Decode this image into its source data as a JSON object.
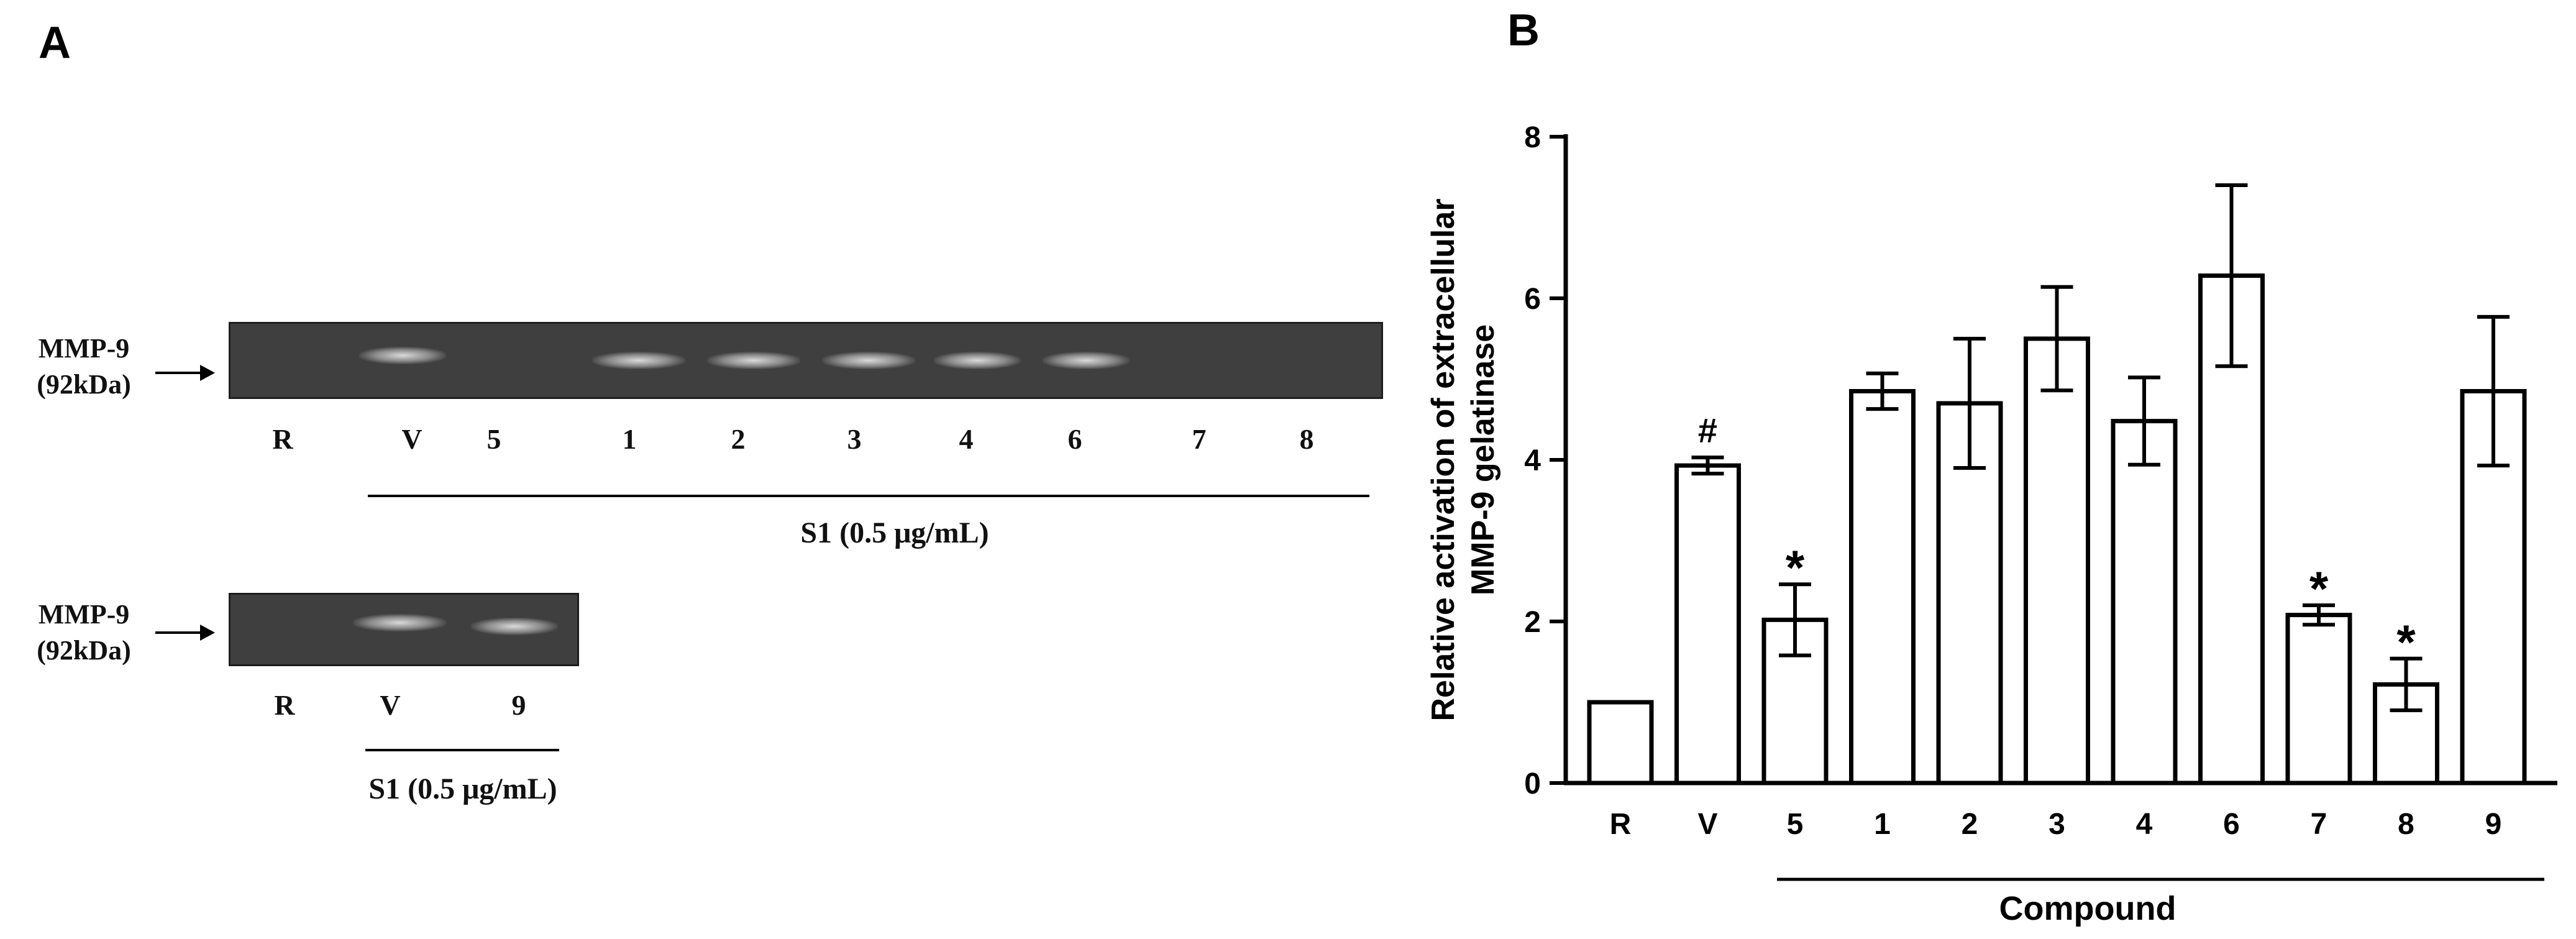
{
  "panel_a": {
    "letter": "A",
    "gel_top": {
      "marker": [
        "MMP-9",
        "(92kDa)"
      ],
      "lanes": [
        "R",
        "V",
        "5",
        "1",
        "2",
        "3",
        "4",
        "6",
        "7",
        "8"
      ],
      "treatment": "S1 (0.5 μg/mL)"
    },
    "gel_bottom": {
      "marker": [
        "MMP-9",
        "(92kDa)"
      ],
      "lanes": [
        "R",
        "V",
        "9"
      ],
      "treatment": "S1 (0.5 μg/mL)"
    }
  },
  "panel_b": {
    "letter": "B"
  },
  "chart_data": {
    "type": "bar",
    "categories": [
      "R",
      "V",
      "5",
      "1",
      "2",
      "3",
      "4",
      "6",
      "7",
      "8",
      "9"
    ],
    "values": [
      1.0,
      3.93,
      2.02,
      4.85,
      4.7,
      5.5,
      4.48,
      6.28,
      2.08,
      1.22,
      4.85
    ],
    "errors": [
      0.0,
      0.1,
      0.44,
      0.22,
      0.8,
      0.64,
      0.54,
      1.12,
      0.12,
      0.32,
      0.92
    ],
    "annotations": [
      "",
      "#",
      "*",
      "",
      "",
      "",
      "",
      "",
      "*",
      "*",
      ""
    ],
    "ylabel": [
      "Relative activation of extracellular",
      "MMP-9 gelatinase"
    ],
    "xlabel": "Compound",
    "ylim": [
      0,
      8
    ],
    "yticks": [
      0,
      2,
      4,
      6,
      8
    ],
    "bar_fill": "#ffffff",
    "bar_stroke": "#000000",
    "grid": false
  }
}
